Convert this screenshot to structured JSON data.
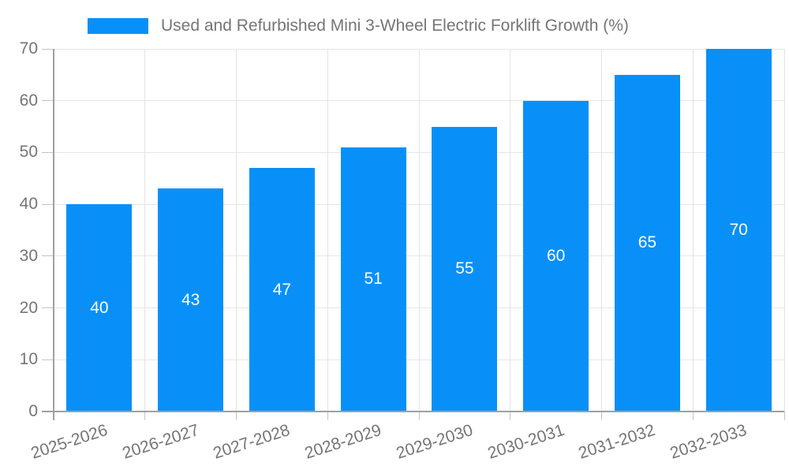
{
  "chart_data": {
    "type": "bar",
    "title": "Used and Refurbished Mini 3-Wheel Electric Forklift Growth (%)",
    "categories": [
      "2025-2026",
      "2026-2027",
      "2027-2028",
      "2028-2029",
      "2029-2030",
      "2030-2031",
      "2031-2032",
      "2032-2033"
    ],
    "values": [
      40,
      43,
      47,
      51,
      55,
      60,
      65,
      70
    ],
    "xlabel": "",
    "ylabel": "",
    "ylim": [
      0,
      70
    ],
    "yticks": [
      0,
      10,
      20,
      30,
      40,
      50,
      60,
      70
    ],
    "grid": true,
    "legend_position": "top-center",
    "bar_value_labels": "inside-center",
    "colors": {
      "bar": "#0990f8",
      "bar_label": "#ffffff",
      "axis_text": "#757575",
      "gridline": "#e6e6e6",
      "tick": "#c4c4c4",
      "axis_line": "#a0a0a0",
      "background": "#ffffff"
    }
  }
}
